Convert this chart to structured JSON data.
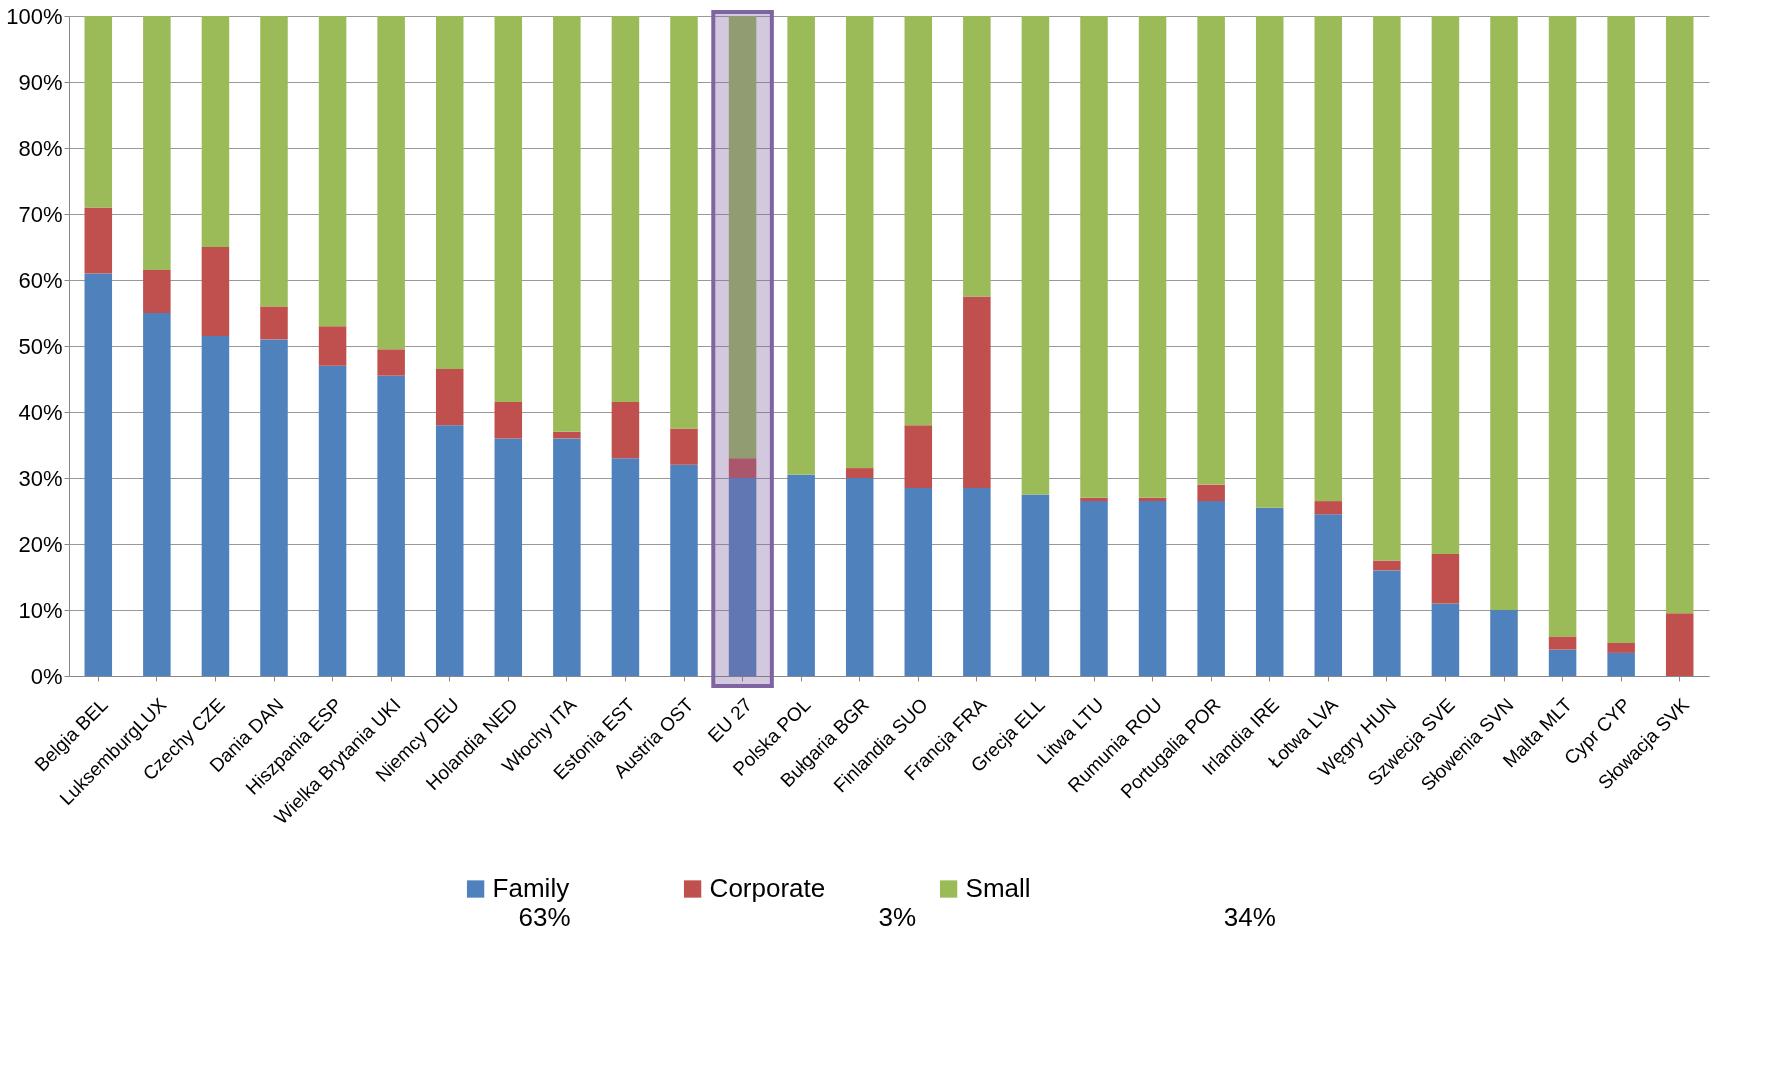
{
  "chart_data": {
    "type": "bar",
    "stacked": true,
    "categories": [
      "Belgia BEL",
      "LuksemburgLUX",
      "Czechy CZE",
      "Dania DAN",
      "Hiszpania ESP",
      "Wielka Brytania UKI",
      "Niemcy DEU",
      "Holandia NED",
      "Włochy ITA",
      "Estonia EST",
      "Austria OST",
      "EU 27",
      "Polska POL",
      "Bułgaria BGR",
      "Finlandia SUO",
      "Francja FRA",
      "Grecja ELL",
      "Litwa LTU",
      "Rumunia ROU",
      "Portugalia POR",
      "Irlandia IRE",
      "Łotwa LVA",
      "Węgry HUN",
      "Szwecja SVE",
      "Słowenia SVN",
      "Malta MLT",
      "Cypr CYP",
      "Słowacja SVK"
    ],
    "series": [
      {
        "name": "Family",
        "color": "#4f81bd",
        "values": [
          61,
          55,
          51.5,
          51,
          47,
          45.5,
          38,
          36,
          36,
          33,
          32,
          30,
          30.5,
          30,
          28.5,
          28.5,
          27.5,
          26.5,
          26.5,
          26.5,
          25.5,
          24.5,
          16,
          11,
          10,
          4,
          3.5,
          0
        ]
      },
      {
        "name": "Corporate",
        "color": "#c0504d",
        "values": [
          10,
          6.5,
          13.5,
          5,
          6,
          4,
          8.5,
          5.5,
          1,
          8.5,
          5.5,
          3,
          0,
          1.5,
          9.5,
          29,
          0,
          0.5,
          0.5,
          2.5,
          0,
          2,
          1.5,
          7.5,
          0,
          2,
          1.5,
          9.5
        ]
      },
      {
        "name": "Small",
        "color": "#9bbb59",
        "values": [
          29,
          38.5,
          35,
          44,
          47,
          50.5,
          53.5,
          58.5,
          63,
          58.5,
          62.5,
          67,
          69.5,
          68.5,
          62,
          42.5,
          72.5,
          73,
          73,
          71,
          74.5,
          73.5,
          82.5,
          81.5,
          90,
          94,
          95,
          90.5
        ]
      }
    ],
    "ylim": [
      0,
      100
    ],
    "yticks": [
      {
        "value": 0,
        "label": "0%"
      },
      {
        "value": 10,
        "label": "10%"
      },
      {
        "value": 20,
        "label": "20%"
      },
      {
        "value": 30,
        "label": "30%"
      },
      {
        "value": 40,
        "label": "40%"
      },
      {
        "value": 50,
        "label": "50%"
      },
      {
        "value": 60,
        "label": "60%"
      },
      {
        "value": 70,
        "label": "70%"
      },
      {
        "value": 80,
        "label": "80%"
      },
      {
        "value": 90,
        "label": "90%"
      },
      {
        "value": 100,
        "label": "100%"
      }
    ],
    "grid": "y",
    "legend": "bottom",
    "bands": [
      {
        "axis": "x",
        "from": "EU 27",
        "to": "EU 27",
        "color": "#8064a2"
      }
    ],
    "annotations": [
      "63%",
      "3%",
      "34%"
    ]
  }
}
